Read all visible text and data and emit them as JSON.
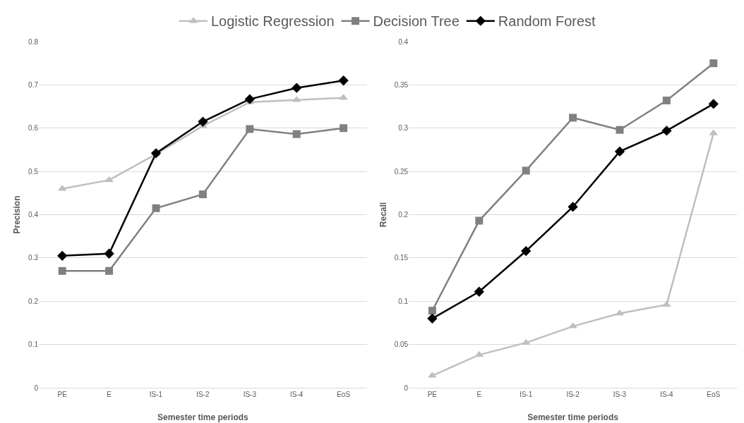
{
  "chart_data": [
    {
      "type": "line",
      "xlabel": "Semester time periods",
      "ylabel": "Precision",
      "categories": [
        "PE",
        "E",
        "IS-1",
        "IS-2",
        "IS-3",
        "IS-4",
        "EoS"
      ],
      "ylim": [
        0,
        0.8
      ],
      "yticks": [
        0,
        0.1,
        0.2,
        0.3,
        0.4,
        0.5,
        0.6,
        0.7,
        0.8
      ],
      "grid": "y",
      "legend": "top",
      "series": [
        {
          "name": "Logistic Regression",
          "color": "#bfbfbf",
          "marker": "triangle",
          "values": [
            0.46,
            0.48,
            0.54,
            0.605,
            0.66,
            0.665,
            0.67
          ]
        },
        {
          "name": "Decision Tree",
          "color": "#808080",
          "marker": "square",
          "values": [
            0.27,
            0.27,
            0.415,
            0.447,
            0.598,
            0.586,
            0.6
          ]
        },
        {
          "name": "Random Forest",
          "color": "#000000",
          "marker": "diamond",
          "values": [
            0.305,
            0.31,
            0.542,
            0.615,
            0.667,
            0.693,
            0.71
          ]
        }
      ]
    },
    {
      "type": "line",
      "xlabel": "Semester time periods",
      "ylabel": "Recall",
      "categories": [
        "PE",
        "E",
        "IS-1",
        "IS-2",
        "IS-3",
        "IS-4",
        "EoS"
      ],
      "ylim": [
        0,
        0.4
      ],
      "yticks": [
        0,
        0.05,
        0.1,
        0.15,
        0.2,
        0.25,
        0.3,
        0.35,
        0.4
      ],
      "grid": "y",
      "series": [
        {
          "color": "#bfbfbf",
          "marker": "triangle",
          "values": [
            0.014,
            0.038,
            0.052,
            0.071,
            0.086,
            0.096,
            0.294
          ]
        },
        {
          "color": "#808080",
          "marker": "square",
          "values": [
            0.089,
            0.193,
            0.251,
            0.312,
            0.298,
            0.332,
            0.375
          ]
        },
        {
          "color": "#000000",
          "marker": "diamond",
          "values": [
            0.08,
            0.111,
            0.158,
            0.209,
            0.273,
            0.297,
            0.328
          ]
        }
      ]
    }
  ]
}
